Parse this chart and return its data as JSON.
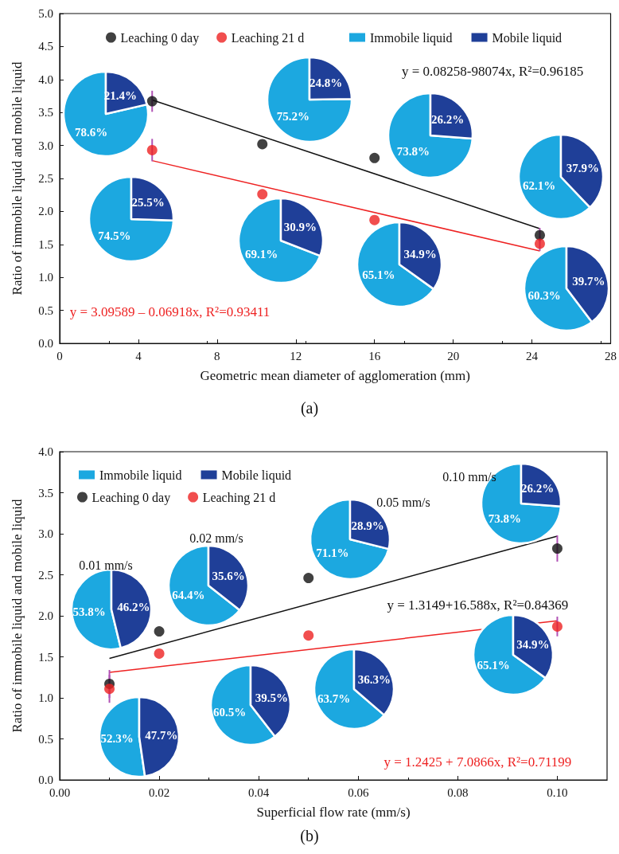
{
  "chart_data": [
    {
      "type": "scatter",
      "title": "(a)",
      "xlabel": "Geometric mean diameter of agglomeration (mm)",
      "ylabel": "Ratio of immobile liquid and mobile liquid",
      "xlim": [
        0,
        28
      ],
      "xticks": [
        0,
        4,
        8,
        12,
        16,
        20,
        24,
        28
      ],
      "ylim": [
        0,
        5
      ],
      "yticks": [
        {
          "value": 0,
          "label": "0.0"
        },
        {
          "value": 0.5,
          "label": "0.5"
        },
        {
          "value": 1,
          "label": "1.0"
        },
        {
          "value": 1.5,
          "label": "1.5"
        },
        {
          "value": 2,
          "label": "2.0"
        },
        {
          "value": 2.5,
          "label": "2.5"
        },
        {
          "value": 3,
          "label": "3.0"
        },
        {
          "value": 3.5,
          "label": "3.5"
        },
        {
          "value": 4,
          "label": "4.0"
        },
        {
          "value": 4.5,
          "label": "4.5"
        },
        {
          "value": 5,
          "label": "5.0"
        }
      ],
      "grid": false,
      "legend": "top",
      "annotations": [
        "y = 0.08258-98074x, R²=0.96185",
        "y = 3.09589 – 0.06918x, R²=0.93411"
      ],
      "series": [
        {
          "type": "scatter",
          "name": "Leaching 0 day",
          "color": "#111111",
          "marker": "circle",
          "x": [
            4.7,
            10.3,
            16.0,
            24.4
          ],
          "values": [
            3.67,
            3.02,
            2.81,
            1.64
          ],
          "errors": [
            0.16,
            null,
            null,
            0.11
          ]
        },
        {
          "type": "scatter",
          "name": "Leaching 21 d",
          "color": "#ee2222",
          "marker": "circle",
          "x": [
            4.7,
            10.3,
            16.0,
            24.4
          ],
          "values": [
            2.93,
            2.26,
            1.87,
            1.51
          ],
          "errors": [
            0.17,
            null,
            null,
            0.11
          ]
        },
        {
          "type": "line",
          "color": "#111111",
          "x": [
            4.7,
            24.4
          ],
          "values": [
            3.69,
            1.74
          ]
        },
        {
          "type": "line",
          "color": "#ee2222",
          "x": [
            4.7,
            24.4
          ],
          "values": [
            2.77,
            1.4
          ]
        }
      ]
    },
    {
      "type": "pie",
      "categories": [
        "Immobile liquid",
        "Mobile liquid"
      ],
      "colors": [
        "#1ca8e0",
        "#1f3f98"
      ],
      "values": [
        78.6,
        21.4
      ],
      "value_labels": [
        "78.6%",
        "21.4%"
      ],
      "legend": "top"
    },
    {
      "type": "pie",
      "categories": [
        null,
        null
      ],
      "colors": [
        "#1ca8e0",
        "#1f3f98"
      ],
      "values": [
        75.2,
        24.8
      ],
      "value_labels": [
        "75.2%",
        "24.8%"
      ]
    },
    {
      "type": "pie",
      "categories": [
        null,
        null
      ],
      "colors": [
        "#1ca8e0",
        "#1f3f98"
      ],
      "values": [
        73.8,
        26.2
      ],
      "value_labels": [
        "73.8%",
        "26.2%"
      ]
    },
    {
      "type": "pie",
      "categories": [
        null,
        null
      ],
      "colors": [
        "#1ca8e0",
        "#1f3f98"
      ],
      "values": [
        62.1,
        37.9
      ],
      "value_labels": [
        "62.1%",
        "37.9%"
      ]
    },
    {
      "type": "pie",
      "categories": [
        null,
        null
      ],
      "colors": [
        "#1ca8e0",
        "#1f3f98"
      ],
      "values": [
        74.5,
        25.5
      ],
      "value_labels": [
        "74.5%",
        "25.5%"
      ]
    },
    {
      "type": "pie",
      "categories": [
        null,
        null
      ],
      "colors": [
        "#1ca8e0",
        "#1f3f98"
      ],
      "values": [
        69.1,
        30.9
      ],
      "value_labels": [
        "69.1%",
        "30.9%"
      ]
    },
    {
      "type": "pie",
      "categories": [
        null,
        null
      ],
      "colors": [
        "#1ca8e0",
        "#1f3f98"
      ],
      "values": [
        65.1,
        34.9
      ],
      "value_labels": [
        "65.1%",
        "34.9%"
      ]
    },
    {
      "type": "pie",
      "categories": [
        null,
        null
      ],
      "colors": [
        "#1ca8e0",
        "#1f3f98"
      ],
      "values": [
        60.3,
        39.7
      ],
      "value_labels": [
        "60.3%",
        "39.7%"
      ]
    },
    {
      "type": "scatter",
      "title": "(b)",
      "xlabel": "Superficial flow rate (mm/s)",
      "ylabel": "Ratio of immobile liquid and mobile liquid",
      "xlim": [
        0,
        0.11
      ],
      "xticks": [
        {
          "value": 0,
          "label": "0.00"
        },
        {
          "value": 0.02,
          "label": "0.02"
        },
        {
          "value": 0.04,
          "label": "0.04"
        },
        {
          "value": 0.06,
          "label": "0.06"
        },
        {
          "value": 0.08,
          "label": "0.08"
        },
        {
          "value": 0.1,
          "label": "0.10"
        }
      ],
      "ylim": [
        0,
        4
      ],
      "yticks": [
        {
          "value": 0,
          "label": "0.0"
        },
        {
          "value": 0.5,
          "label": "0.5"
        },
        {
          "value": 1,
          "label": "1.0"
        },
        {
          "value": 1.5,
          "label": "1.5"
        },
        {
          "value": 2,
          "label": "2.0"
        },
        {
          "value": 2.5,
          "label": "2.5"
        },
        {
          "value": 3,
          "label": "3.0"
        },
        {
          "value": 3.5,
          "label": "3.5"
        },
        {
          "value": 4,
          "label": "4.0"
        }
      ],
      "grid": false,
      "legend": "top left",
      "annotations": [
        "y = 1.3149+16.588x, R²=0.84369",
        "y = 1.2425 + 7.0866x, R²=0.71199"
      ],
      "series": [
        {
          "type": "scatter",
          "name": "Leaching 0 day",
          "color": "#111111",
          "marker": "circle",
          "x": [
            0.01,
            0.02,
            0.05,
            0.1
          ],
          "values": [
            1.17,
            1.81,
            2.46,
            2.82
          ],
          "errors": [
            0.17,
            null,
            null,
            0.16
          ]
        },
        {
          "type": "scatter",
          "name": "Leaching 21 d",
          "color": "#ee2222",
          "marker": "circle",
          "x": [
            0.01,
            0.02,
            0.05,
            0.1
          ],
          "values": [
            1.11,
            1.54,
            1.76,
            1.87
          ],
          "errors": [
            0.17,
            null,
            null,
            0.12
          ]
        },
        {
          "type": "line",
          "color": "#111111",
          "x": [
            0.01,
            0.1
          ],
          "values": [
            1.48,
            2.97
          ]
        },
        {
          "type": "line",
          "color": "#ee2222",
          "x": [
            0.01,
            0.1
          ],
          "values": [
            1.31,
            1.94
          ]
        }
      ]
    },
    {
      "type": "pie",
      "title": "0.01 mm/s",
      "categories": [
        "Immobile liquid",
        "Mobile liquid"
      ],
      "colors": [
        "#1ca8e0",
        "#1f3f98"
      ],
      "values": [
        53.8,
        46.2
      ],
      "value_labels": [
        "53.8%",
        "46.2%"
      ],
      "legend": "top right"
    },
    {
      "type": "pie",
      "title": "0.02 mm/s",
      "categories": [
        null,
        null
      ],
      "colors": [
        "#1ca8e0",
        "#1f3f98"
      ],
      "values": [
        64.4,
        35.6
      ],
      "value_labels": [
        "64.4%",
        "35.6%"
      ]
    },
    {
      "type": "pie",
      "title": "0.05 mm/s",
      "categories": [
        null,
        null
      ],
      "colors": [
        "#1ca8e0",
        "#1f3f98"
      ],
      "values": [
        71.1,
        28.9
      ],
      "value_labels": [
        "71.1%",
        "28.9%"
      ]
    },
    {
      "type": "pie",
      "title": "0.10 mm/s",
      "categories": [
        null,
        null
      ],
      "colors": [
        "#1ca8e0",
        "#1f3f98"
      ],
      "values": [
        73.8,
        26.2
      ],
      "value_labels": [
        "73.8%",
        "26.2%"
      ]
    },
    {
      "type": "pie",
      "categories": [
        null,
        null
      ],
      "colors": [
        "#1ca8e0",
        "#1f3f98"
      ],
      "values": [
        52.3,
        47.7
      ],
      "value_labels": [
        "52.3%",
        "47.7%"
      ]
    },
    {
      "type": "pie",
      "categories": [
        null,
        null
      ],
      "colors": [
        "#1ca8e0",
        "#1f3f98"
      ],
      "values": [
        60.5,
        39.5
      ],
      "value_labels": [
        "60.5%",
        "39.5%"
      ]
    },
    {
      "type": "pie",
      "categories": [
        null,
        null
      ],
      "colors": [
        "#1ca8e0",
        "#1f3f98"
      ],
      "values": [
        63.7,
        36.3
      ],
      "value_labels": [
        "63.7%",
        "36.3%"
      ]
    },
    {
      "type": "pie",
      "categories": [
        null,
        null
      ],
      "colors": [
        "#1ca8e0",
        "#1f3f98"
      ],
      "values": [
        65.1,
        34.9
      ],
      "value_labels": [
        "65.1%",
        "34.9%"
      ]
    }
  ]
}
